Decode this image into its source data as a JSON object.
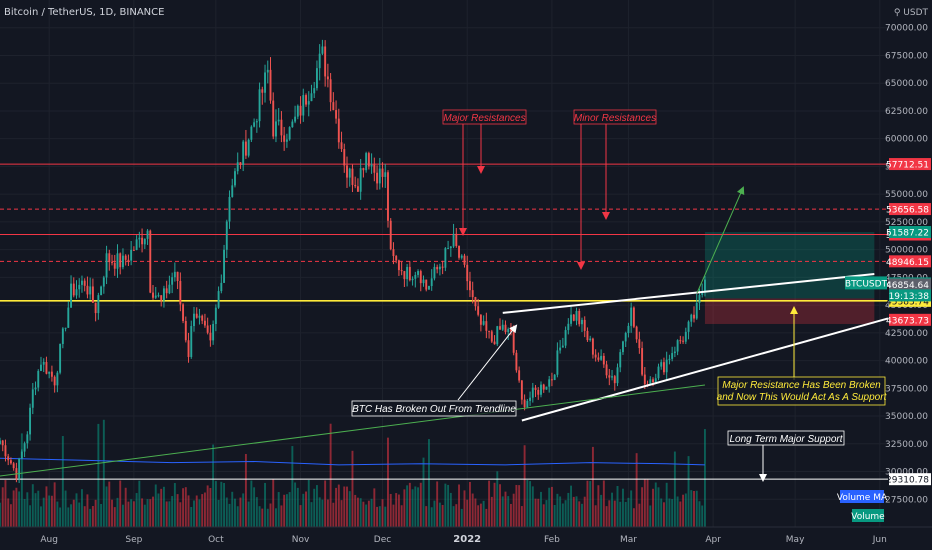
{
  "header": {
    "symbol_line": "Bitcoin / TetherUS, 1D, BINANCE",
    "currency": "USDT"
  },
  "chart_data": {
    "type": "candlestick",
    "ylim": [
      25000,
      72500
    ],
    "y_ticks": [
      {
        "value": 70000,
        "label": "70000.00"
      },
      {
        "value": 67500,
        "label": "67500.00"
      },
      {
        "value": 65000,
        "label": "65000.00"
      },
      {
        "value": 62500,
        "label": "62500.00"
      },
      {
        "value": 60000,
        "label": "60000.00"
      },
      {
        "value": 57500,
        "label": "57500.00"
      },
      {
        "value": 55000,
        "label": "55000.00"
      },
      {
        "value": 52500,
        "label": "52500.00"
      },
      {
        "value": 50000,
        "label": "50000.00"
      },
      {
        "value": 47500,
        "label": "47500.00"
      },
      {
        "value": 45000,
        "label": "45000.00"
      },
      {
        "value": 42500,
        "label": "42500.00"
      },
      {
        "value": 40000,
        "label": "40000.00"
      },
      {
        "value": 37500,
        "label": "37500.00"
      },
      {
        "value": 35000,
        "label": "35000.00"
      },
      {
        "value": 32500,
        "label": "32500.00"
      },
      {
        "value": 30000,
        "label": "30000.00"
      },
      {
        "value": 27500,
        "label": "27500.00"
      }
    ],
    "x_ticks": [
      {
        "date": "2021-08-01",
        "label": "Aug",
        "bold": false
      },
      {
        "date": "2021-09-01",
        "label": "Sep",
        "bold": false
      },
      {
        "date": "2021-10-01",
        "label": "Oct",
        "bold": false
      },
      {
        "date": "2021-11-01",
        "label": "Nov",
        "bold": false
      },
      {
        "date": "2021-12-01",
        "label": "Dec",
        "bold": false
      },
      {
        "date": "2022-01-01",
        "label": "2022",
        "bold": true
      },
      {
        "date": "2022-02-01",
        "label": "Feb",
        "bold": false
      },
      {
        "date": "2022-03-01",
        "label": "Mar",
        "bold": false
      },
      {
        "date": "2022-04-01",
        "label": "Apr",
        "bold": false
      },
      {
        "date": "2022-05-01",
        "label": "May",
        "bold": false
      },
      {
        "date": "2022-06-01",
        "label": "Jun",
        "bold": false
      }
    ],
    "x_range": [
      "2021-07-14",
      "2022-06-04"
    ],
    "last_candle_date": "2022-03-29",
    "price_path": [
      [
        "2021-07-14",
        32800
      ],
      [
        "2021-07-20",
        29800
      ],
      [
        "2021-07-24",
        33600
      ],
      [
        "2021-07-26",
        37200
      ],
      [
        "2021-07-29",
        40000
      ],
      [
        "2021-08-03",
        38200
      ],
      [
        "2021-08-09",
        46200
      ],
      [
        "2021-08-14",
        47100
      ],
      [
        "2021-08-18",
        44700
      ],
      [
        "2021-08-22",
        49200
      ],
      [
        "2021-08-28",
        48800
      ],
      [
        "2021-09-06",
        51800
      ],
      [
        "2021-09-07",
        46800
      ],
      [
        "2021-09-11",
        45200
      ],
      [
        "2021-09-16",
        48100
      ],
      [
        "2021-09-21",
        40700
      ],
      [
        "2021-09-23",
        44800
      ],
      [
        "2021-09-29",
        41300
      ],
      [
        "2021-10-03",
        47800
      ],
      [
        "2021-10-06",
        55300
      ],
      [
        "2021-10-15",
        61600
      ],
      [
        "2021-10-20",
        66000
      ],
      [
        "2021-10-22",
        61000
      ],
      [
        "2021-10-28",
        60600
      ],
      [
        "2021-11-02",
        63200
      ],
      [
        "2021-11-09",
        67500
      ],
      [
        "2021-11-12",
        64300
      ],
      [
        "2021-11-18",
        56900
      ],
      [
        "2021-11-22",
        56200
      ],
      [
        "2021-11-25",
        58900
      ],
      [
        "2021-11-28",
        57100
      ],
      [
        "2021-12-02",
        56500
      ],
      [
        "2021-12-04",
        49300
      ],
      [
        "2021-12-10",
        47800
      ],
      [
        "2021-12-14",
        48400
      ],
      [
        "2021-12-17",
        46500
      ],
      [
        "2021-12-27",
        50700
      ],
      [
        "2022-01-01",
        47300
      ],
      [
        "2022-01-05",
        43500
      ],
      [
        "2022-01-10",
        41800
      ],
      [
        "2022-01-14",
        43000
      ],
      [
        "2022-01-17",
        42200
      ],
      [
        "2022-01-21",
        36200
      ],
      [
        "2022-01-24",
        36700
      ],
      [
        "2022-02-01",
        38500
      ],
      [
        "2022-02-07",
        43800
      ],
      [
        "2022-02-10",
        44100
      ],
      [
        "2022-02-14",
        42000
      ],
      [
        "2022-02-17",
        40500
      ],
      [
        "2022-02-24",
        38300
      ],
      [
        "2022-02-28",
        43200
      ],
      [
        "2022-03-02",
        44400
      ],
      [
        "2022-03-07",
        38000
      ],
      [
        "2022-03-14",
        39600
      ],
      [
        "2022-03-17",
        40900
      ],
      [
        "2022-03-22",
        42400
      ],
      [
        "2022-03-26",
        44500
      ],
      [
        "2022-03-29",
        47300
      ]
    ],
    "volume_ma": [
      [
        "2021-07-14",
        31200
      ],
      [
        "2021-08-15",
        31000
      ],
      [
        "2021-09-15",
        30800
      ],
      [
        "2021-10-15",
        30900
      ],
      [
        "2021-11-15",
        30600
      ],
      [
        "2021-12-15",
        30700
      ],
      [
        "2022-01-15",
        30600
      ],
      [
        "2022-02-15",
        30800
      ],
      [
        "2022-03-15",
        30700
      ],
      [
        "2022-03-29",
        30600
      ]
    ],
    "horizontal_levels": [
      {
        "value": 57712.51,
        "label": "57712.51",
        "style": "solid",
        "color": "#f23645"
      },
      {
        "value": 53656.58,
        "label": "53656.58",
        "style": "dashed",
        "color": "#f23645"
      },
      {
        "value": 51363.09,
        "label": "51363.09",
        "style": "solid",
        "color": "#f23645"
      },
      {
        "value": 48946.15,
        "label": "48946.15",
        "style": "dashed",
        "color": "#f23645"
      },
      {
        "value": 45383.74,
        "label": "45383.74",
        "style": "solid",
        "color": "#ffeb3b"
      },
      {
        "value": 29310.78,
        "label": "29310.78",
        "style": "solid",
        "color": "#ffffff"
      }
    ],
    "axis_price_tags": [
      {
        "value": 51587.22,
        "label": "51587.22",
        "color": "#089981"
      },
      {
        "value": 46956.0,
        "label": "46956.00",
        "color": "#089981"
      },
      {
        "value": 46854.64,
        "label": "46854.64",
        "color": "#5d606b"
      },
      {
        "value": 43673.73,
        "label": "43673.73",
        "color": "#f23645"
      }
    ],
    "countdown": "19:13:38",
    "ticker_tag": "BTCUSDT",
    "trendlines": [
      {
        "from": [
          "2022-01-21",
          34600
        ],
        "to": [
          "2022-06-04",
          43800
        ],
        "color": "#ffffff"
      },
      {
        "from": [
          "2022-01-14",
          44300
        ],
        "to": [
          "2022-05-30",
          47800
        ],
        "color": "#ffffff"
      },
      {
        "from": [
          "2021-07-14",
          29600
        ],
        "to": [
          "2022-03-29",
          37800
        ],
        "color": "#4caf50"
      }
    ],
    "position_box": {
      "start": "2022-03-29",
      "end": "2022-05-30",
      "entry": 45600,
      "target": 51587.22,
      "stop": 43300
    },
    "annotations": [
      {
        "id": "major",
        "text": "Major Resistances",
        "color": "#f23645"
      },
      {
        "id": "minor",
        "text": "Minor Resistances",
        "color": "#f23645"
      },
      {
        "id": "breakout",
        "text": "BTC Has Broken Out From Trendline",
        "color": "#ffffff"
      },
      {
        "id": "support",
        "text": "Major Resistance Has Been Broken",
        "text2": "and Now This Would Act As A Support",
        "color": "#ffeb3b"
      },
      {
        "id": "longterm",
        "text": "Long Term Major Support",
        "color": "#ffffff"
      }
    ],
    "legend_tags": {
      "volume_ma": "Volume MA",
      "volume": "Volume"
    }
  }
}
